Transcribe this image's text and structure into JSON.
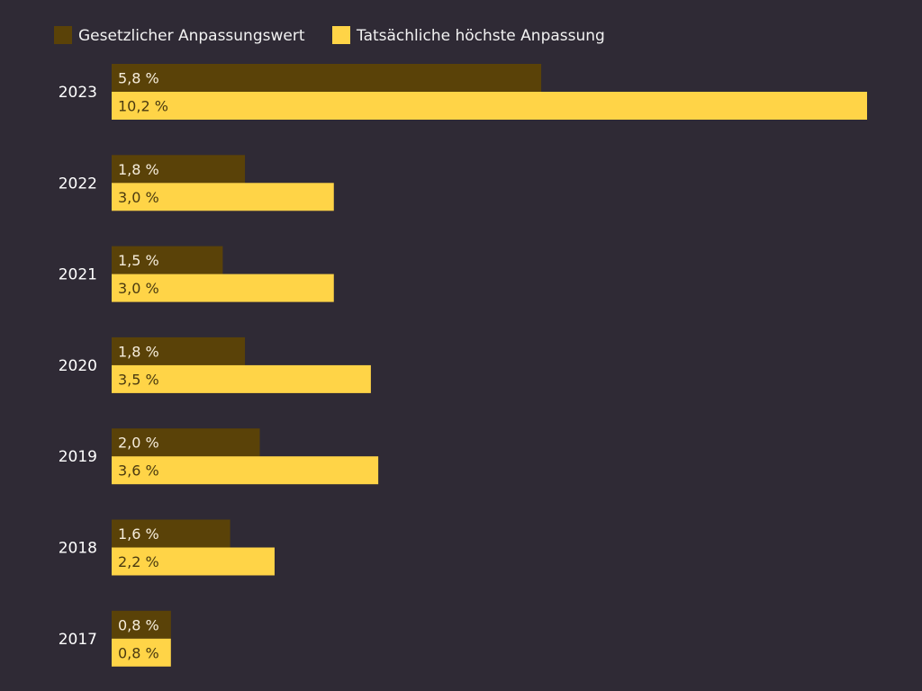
{
  "colors": {
    "background": "#2f2a35",
    "legal": "#5a4208",
    "actual": "#ffd447",
    "text_light": "#ffffff",
    "label_on_dark": "#f6eddc",
    "label_on_light": "#4a3a10"
  },
  "chart_data": {
    "type": "bar",
    "orientation": "horizontal",
    "title": "",
    "xlabel": "",
    "ylabel": "",
    "xlim": [
      0,
      10.2
    ],
    "grid": false,
    "legend_position": "top-left",
    "categories": [
      "2023",
      "2022",
      "2021",
      "2020",
      "2019",
      "2018",
      "2017"
    ],
    "series": [
      {
        "name": "Gesetzlicher Anpassungswert",
        "color": "#5a4208",
        "values": [
          5.8,
          1.8,
          1.5,
          1.8,
          2.0,
          1.6,
          0.8
        ],
        "labels": [
          "5,8 %",
          "1,8 %",
          "1,5 %",
          "1,8 %",
          "2,0 %",
          "1,6 %",
          "0,8 %"
        ]
      },
      {
        "name": "Tatsächliche höchste Anpassung",
        "color": "#ffd447",
        "values": [
          10.2,
          3.0,
          3.0,
          3.5,
          3.6,
          2.2,
          0.8
        ],
        "labels": [
          "10,2 %",
          "3,0 %",
          "3,0 %",
          "3,5 %",
          "3,6 %",
          "2,2 %",
          "0,8 %"
        ]
      }
    ]
  }
}
